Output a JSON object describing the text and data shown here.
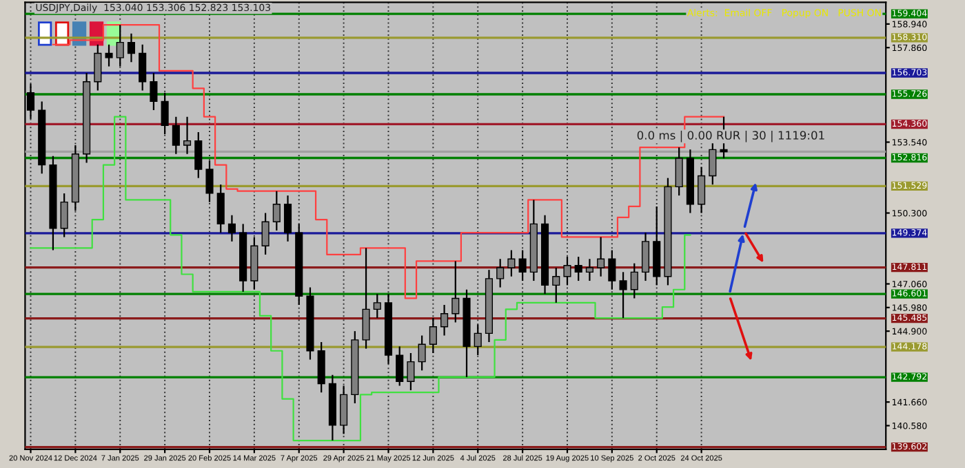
{
  "chart_data": {
    "type": "candlestick",
    "title": "USDJPY,Daily  153.040 153.306 152.823 153.103",
    "annotations": [
      "Alerts:  Email OFF   Popup ON   PUSH ON",
      "0.0 ms | 0.00 RUR | 30 | 1119:01"
    ],
    "categories": [
      "20 Nov 2024",
      null,
      null,
      null,
      "12 Dec 2024",
      null,
      null,
      null,
      "7 Jan 2025",
      null,
      null,
      null,
      "29 Jan 2025",
      null,
      null,
      null,
      "20 Feb 2025",
      null,
      null,
      null,
      "14 Mar 2025",
      null,
      null,
      null,
      "7 Apr 2025",
      null,
      null,
      null,
      "29 Apr 2025",
      null,
      null,
      null,
      "21 May 2025",
      null,
      null,
      null,
      "12 Jun 2025",
      null,
      null,
      null,
      "4 Jul 2025",
      null,
      null,
      null,
      "28 Jul 2025",
      null,
      null,
      null,
      "19 Aug 2025",
      null,
      null,
      null,
      "10 Sep 2025",
      null,
      null,
      null,
      "2 Oct 2025",
      null,
      null,
      null,
      "24 Oct 2025",
      null,
      null,
      null,
      null,
      null,
      null,
      null,
      null,
      null,
      null,
      null,
      null,
      null,
      null,
      null,
      null
    ],
    "ohlc": [
      [
        155.8,
        156.2,
        154.6,
        155.0
      ],
      [
        155.0,
        155.4,
        152.1,
        152.5
      ],
      [
        152.5,
        152.9,
        148.6,
        149.6
      ],
      [
        149.6,
        151.2,
        149.2,
        150.8
      ],
      [
        150.8,
        153.4,
        150.4,
        153.0
      ],
      [
        153.0,
        156.7,
        152.6,
        156.3
      ],
      [
        156.3,
        158.0,
        155.9,
        157.6
      ],
      [
        157.6,
        158.0,
        157.0,
        157.4
      ],
      [
        157.4,
        158.9,
        157.0,
        158.1
      ],
      [
        158.1,
        158.5,
        157.2,
        157.6
      ],
      [
        157.6,
        158.0,
        155.9,
        156.3
      ],
      [
        156.3,
        156.7,
        155.0,
        155.4
      ],
      [
        155.4,
        155.8,
        153.9,
        154.3
      ],
      [
        154.3,
        154.7,
        153.0,
        153.4
      ],
      [
        153.4,
        154.7,
        153.0,
        153.6
      ],
      [
        153.6,
        154.0,
        151.9,
        152.3
      ],
      [
        152.3,
        152.7,
        150.8,
        151.2
      ],
      [
        151.2,
        151.6,
        149.4,
        149.8
      ],
      [
        149.8,
        150.2,
        149.0,
        149.4
      ],
      [
        149.4,
        149.8,
        146.7,
        147.2
      ],
      [
        147.2,
        149.2,
        146.8,
        148.8
      ],
      [
        148.8,
        150.3,
        148.4,
        149.9
      ],
      [
        149.9,
        151.3,
        149.5,
        150.7
      ],
      [
        150.7,
        151.1,
        149.0,
        149.4
      ],
      [
        149.4,
        149.8,
        146.1,
        146.5
      ],
      [
        146.5,
        146.9,
        143.6,
        144.0
      ],
      [
        144.0,
        144.4,
        142.1,
        142.5
      ],
      [
        142.5,
        142.9,
        139.9,
        140.6
      ],
      [
        140.6,
        142.4,
        140.2,
        142.0
      ],
      [
        142.0,
        144.9,
        141.6,
        144.5
      ],
      [
        144.5,
        148.7,
        144.1,
        145.9
      ],
      [
        145.9,
        146.6,
        145.5,
        146.2
      ],
      [
        146.2,
        146.6,
        143.4,
        143.8
      ],
      [
        143.8,
        144.2,
        142.4,
        142.6
      ],
      [
        142.6,
        143.9,
        142.2,
        143.5
      ],
      [
        143.5,
        144.7,
        143.1,
        144.3
      ],
      [
        144.3,
        145.5,
        143.9,
        145.1
      ],
      [
        145.1,
        146.1,
        144.7,
        145.7
      ],
      [
        145.7,
        148.1,
        145.3,
        146.4
      ],
      [
        146.4,
        146.8,
        142.8,
        144.2
      ],
      [
        144.2,
        145.2,
        143.8,
        144.8
      ],
      [
        144.8,
        147.7,
        144.4,
        147.3
      ],
      [
        147.3,
        148.2,
        146.9,
        147.8
      ],
      [
        147.8,
        148.6,
        147.4,
        148.2
      ],
      [
        148.2,
        148.6,
        147.2,
        147.6
      ],
      [
        147.6,
        150.9,
        147.2,
        149.8
      ],
      [
        149.8,
        150.2,
        146.6,
        147.0
      ],
      [
        147.0,
        147.8,
        146.2,
        147.4
      ],
      [
        147.4,
        148.3,
        147.0,
        147.9
      ],
      [
        147.9,
        148.3,
        147.2,
        147.6
      ],
      [
        147.6,
        148.2,
        147.2,
        147.8
      ],
      [
        147.8,
        149.2,
        147.4,
        148.2
      ],
      [
        148.2,
        148.6,
        146.8,
        147.2
      ],
      [
        147.2,
        147.6,
        145.5,
        146.8
      ],
      [
        146.8,
        148.0,
        146.4,
        147.6
      ],
      [
        147.6,
        149.4,
        147.2,
        149.0
      ],
      [
        149.0,
        150.6,
        147.0,
        147.4
      ],
      [
        147.4,
        151.9,
        147.0,
        151.5
      ],
      [
        151.5,
        153.3,
        151.1,
        152.8
      ],
      [
        152.8,
        153.2,
        150.3,
        150.7
      ],
      [
        150.7,
        152.4,
        150.3,
        152.0
      ],
      [
        152.0,
        153.6,
        151.6,
        153.2
      ],
      [
        153.2,
        154.7,
        152.8,
        153.1
      ],
      null,
      null,
      null,
      null,
      null,
      null,
      null,
      null,
      null,
      null,
      null,
      null,
      null,
      null
    ],
    "series": [
      {
        "type": "step",
        "color": "#ff4040",
        "values": [
          null,
          null,
          158.0,
          158.0,
          158.2,
          158.2,
          158.2,
          158.9,
          158.9,
          158.9,
          158.9,
          158.9,
          156.8,
          156.8,
          156.8,
          156.0,
          154.7,
          152.5,
          151.4,
          151.3,
          151.3,
          151.3,
          151.3,
          151.3,
          151.3,
          151.3,
          150.0,
          148.4,
          148.4,
          148.4,
          148.7,
          148.7,
          148.7,
          148.7,
          146.4,
          148.1,
          148.1,
          148.1,
          148.1,
          149.4,
          149.4,
          149.4,
          149.4,
          149.4,
          149.4,
          150.9,
          150.9,
          150.9,
          149.2,
          149.2,
          149.2,
          149.2,
          149.2,
          150.1,
          150.6,
          153.3,
          153.3,
          153.3,
          153.3,
          154.7,
          154.7,
          154.7,
          154.7,
          null,
          null,
          null,
          null,
          null,
          null,
          null,
          null,
          null,
          null,
          null,
          null,
          null,
          null
        ]
      },
      {
        "type": "step",
        "color": "#40e040",
        "values": [
          148.7,
          148.7,
          148.7,
          148.7,
          148.7,
          148.7,
          150.0,
          152.5,
          154.7,
          150.9,
          150.9,
          150.9,
          150.9,
          149.3,
          147.5,
          146.7,
          146.7,
          146.7,
          146.7,
          146.7,
          146.7,
          145.6,
          144.0,
          141.8,
          139.9,
          139.9,
          139.9,
          139.9,
          139.9,
          139.9,
          142.0,
          142.1,
          142.1,
          142.1,
          142.1,
          142.1,
          142.1,
          142.8,
          142.8,
          142.8,
          142.8,
          142.8,
          144.5,
          145.9,
          146.2,
          146.2,
          146.2,
          146.2,
          146.2,
          146.2,
          146.2,
          145.5,
          145.5,
          145.5,
          145.5,
          145.5,
          145.5,
          146.0,
          146.8,
          149.3,
          null,
          null,
          null,
          null,
          null,
          null,
          null,
          null,
          null,
          null,
          null,
          null,
          null,
          null,
          null,
          null,
          null
        ]
      }
    ],
    "ylim": [
      139.5,
      159.93
    ],
    "yticks": [
      {
        "value": 158.94,
        "label": "158.940"
      },
      {
        "value": 157.86,
        "label": "157.860"
      },
      {
        "value": 153.54,
        "label": "153.540"
      },
      {
        "value": 150.3,
        "label": "150.300"
      },
      {
        "value": 147.06,
        "label": "147.060"
      },
      {
        "value": 145.98,
        "label": "145.980"
      },
      {
        "value": 144.9,
        "label": "144.900"
      },
      {
        "value": 141.66,
        "label": "141.660"
      },
      {
        "value": 140.58,
        "label": "140.580"
      }
    ],
    "ref_lines": [
      {
        "axis": "y",
        "value": 159.404,
        "label": "159.404",
        "color": "#008000"
      },
      {
        "axis": "y",
        "value": 158.31,
        "label": "158.310",
        "color": "#9a9a30"
      },
      {
        "axis": "y",
        "value": 156.703,
        "label": "156.703",
        "color": "#1a1a99"
      },
      {
        "axis": "y",
        "value": 155.726,
        "label": "155.726",
        "color": "#008000"
      },
      {
        "axis": "y",
        "value": 154.36,
        "label": "154.360",
        "color": "#a01c2c"
      },
      {
        "axis": "y",
        "value": 153.103,
        "color": "#a0a0a0"
      },
      {
        "axis": "y",
        "value": 152.816,
        "label": "152.816",
        "color": "#008000"
      },
      {
        "axis": "y",
        "value": 151.529,
        "label": "151.529",
        "color": "#9a9a30"
      },
      {
        "axis": "y",
        "value": 149.374,
        "label": "149.374",
        "color": "#1a1a99"
      },
      {
        "axis": "y",
        "value": 147.811,
        "label": "147.811",
        "color": "#8b1a1a"
      },
      {
        "axis": "y",
        "value": 146.601,
        "label": "146.601",
        "color": "#008000"
      },
      {
        "axis": "y",
        "value": 145.485,
        "label": "145.485",
        "color": "#8b1a1a"
      },
      {
        "axis": "y",
        "value": 144.178,
        "label": "144.178",
        "color": "#9a9a30"
      },
      {
        "axis": "y",
        "value": 142.792,
        "label": "142.792",
        "color": "#008000"
      },
      {
        "axis": "y",
        "value": 139.602,
        "label": "139.602",
        "color": "#8b1a1a"
      }
    ],
    "grid": "x"
  }
}
